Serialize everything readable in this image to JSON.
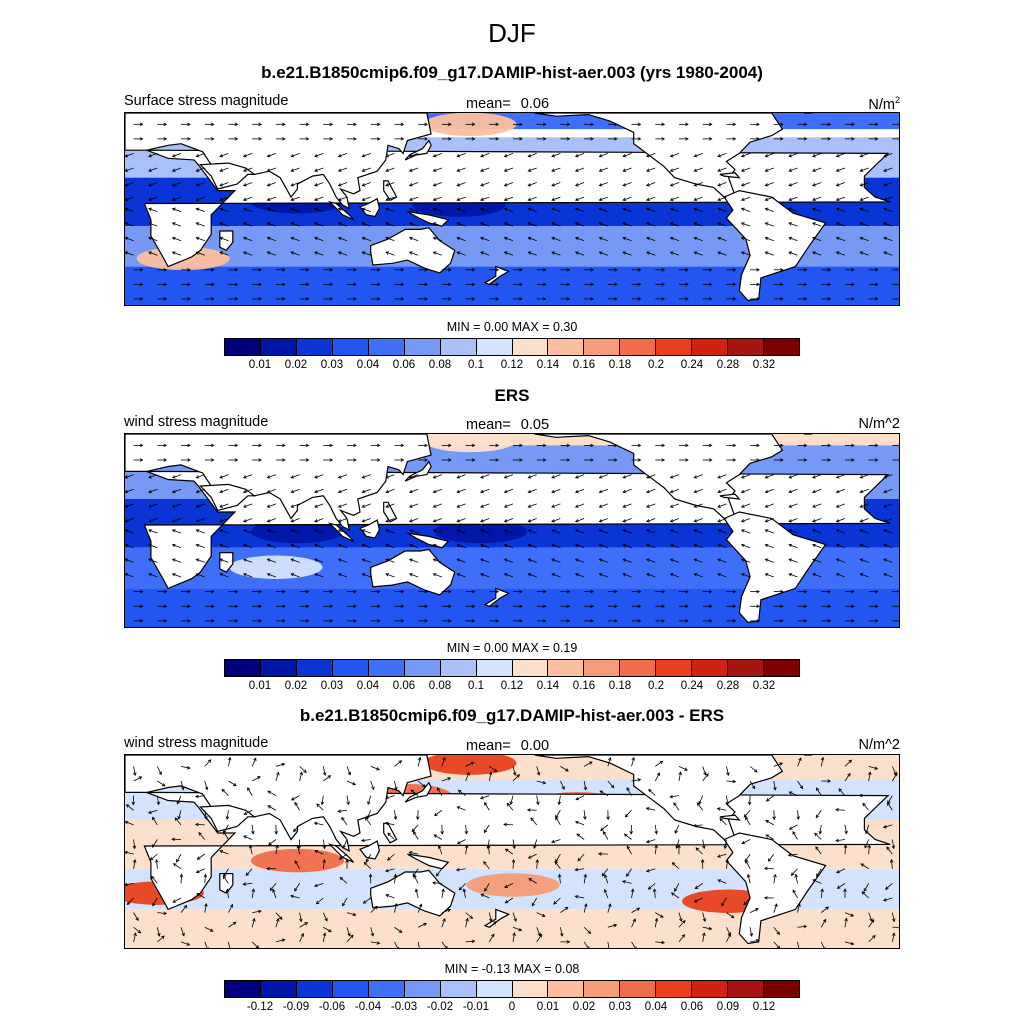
{
  "main_title": "DJF",
  "panels": [
    {
      "title": "b.e21.B1850cmip6.f09_g17.DAMIP-hist-aer.003 (yrs 1980-2004)",
      "left_label": "Surface stress magnitude",
      "mean_label": "mean=",
      "mean_value": "0.06",
      "units_base": "N/m",
      "units_sup": "2",
      "minmax": "MIN =   0.00 MAX =   0.30",
      "colorbar_ticks": [
        "0.01",
        "0.02",
        "0.03",
        "0.04",
        "0.06",
        "0.08",
        "0.1",
        "0.12",
        "0.14",
        "0.16",
        "0.18",
        "0.2",
        "0.24",
        "0.28",
        "0.32"
      ],
      "colors": [
        "#00007f",
        "#0016a8",
        "#0a35d6",
        "#2255f2",
        "#3f6ff8",
        "#7799f6",
        "#aac0fa",
        "#d4e3fd",
        "#fde0cc",
        "#fbbf9f",
        "#f69c78",
        "#ef6d4b",
        "#e8401e",
        "#cf2213",
        "#a81510",
        "#7c0000"
      ],
      "bands": [
        {
          "color_index": 4,
          "lat_min": 50,
          "lat_max": 60
        },
        {
          "color_index": 6,
          "lat_min": 20,
          "lat_max": 45
        },
        {
          "color_index": 2,
          "lat_min": -10,
          "lat_max": 20
        },
        {
          "color_index": 5,
          "lat_min": -35,
          "lat_max": -10
        },
        {
          "color_index": 3,
          "lat_min": -60,
          "lat_max": -35
        }
      ],
      "blobs": [
        {
          "color_index": 9,
          "lon": 160,
          "lat": 53
        },
        {
          "color_index": 8,
          "lon": 140,
          "lat": 20
        },
        {
          "color_index": 9,
          "lon": 27,
          "lat": -30
        },
        {
          "color_index": 1,
          "lon": 80,
          "lat": 5
        },
        {
          "color_index": 1,
          "lon": 155,
          "lat": 3
        }
      ]
    },
    {
      "title": "ERS",
      "left_label": "wind stress magnitude",
      "mean_label": "mean=",
      "mean_value": "0.05",
      "units_base": "N/m^2",
      "units_sup": "",
      "minmax": "MIN =   0.00 MAX =   0.19",
      "colorbar_ticks": [
        "0.01",
        "0.02",
        "0.03",
        "0.04",
        "0.06",
        "0.08",
        "0.1",
        "0.12",
        "0.14",
        "0.16",
        "0.18",
        "0.2",
        "0.24",
        "0.28",
        "0.32"
      ],
      "colors": [
        "#00007f",
        "#0016a8",
        "#0a35d6",
        "#2255f2",
        "#3f6ff8",
        "#7799f6",
        "#aac0fa",
        "#d4e3fd",
        "#fde0cc",
        "#fbbf9f",
        "#f69c78",
        "#ef6d4b",
        "#e8401e",
        "#cf2213",
        "#a81510",
        "#7c0000"
      ],
      "bands": [
        {
          "color_index": 8,
          "lat_min": 53,
          "lat_max": 60
        },
        {
          "color_index": 5,
          "lat_min": 20,
          "lat_max": 53
        },
        {
          "color_index": 2,
          "lat_min": -10,
          "lat_max": 20
        },
        {
          "color_index": 4,
          "lat_min": -35,
          "lat_max": -10
        },
        {
          "color_index": 3,
          "lat_min": -60,
          "lat_max": -35
        }
      ],
      "blobs": [
        {
          "color_index": 8,
          "lon": 160,
          "lat": 56
        },
        {
          "color_index": 1,
          "lon": 80,
          "lat": 0
        },
        {
          "color_index": 1,
          "lon": 165,
          "lat": 0
        },
        {
          "color_index": 7,
          "lon": 70,
          "lat": -22
        }
      ]
    },
    {
      "title": "b.e21.B1850cmip6.f09_g17.DAMIP-hist-aer.003 - ERS",
      "left_label": "wind stress magnitude",
      "mean_label": "mean=",
      "mean_value": "0.00",
      "units_base": "N/m^2",
      "units_sup": "",
      "minmax": "MIN =  -0.13 MAX =   0.08",
      "colorbar_ticks": [
        "-0.12",
        "-0.09",
        "-0.06",
        "-0.04",
        "-0.03",
        "-0.02",
        "-0.01",
        "0",
        "0.01",
        "0.02",
        "0.03",
        "0.04",
        "0.06",
        "0.09",
        "0.12"
      ],
      "colors": [
        "#00007f",
        "#0016a8",
        "#0a35d6",
        "#2255f2",
        "#3f6ff8",
        "#7799f6",
        "#aac0fa",
        "#d4e3fd",
        "#fde0cc",
        "#fbbf9f",
        "#f69c78",
        "#ef6d4b",
        "#e8401e",
        "#cf2213",
        "#a81510",
        "#7c0000"
      ],
      "bands": [
        {
          "color_index": 8,
          "lat_min": 45,
          "lat_max": 60
        },
        {
          "color_index": 7,
          "lat_min": 20,
          "lat_max": 45
        },
        {
          "color_index": 8,
          "lat_min": -10,
          "lat_max": 20
        },
        {
          "color_index": 7,
          "lat_min": -35,
          "lat_max": -10
        },
        {
          "color_index": 8,
          "lat_min": -60,
          "lat_max": -35
        }
      ],
      "blobs": [
        {
          "color_index": 12,
          "lon": 160,
          "lat": 55
        },
        {
          "color_index": 11,
          "lon": 130,
          "lat": 35
        },
        {
          "color_index": 11,
          "lon": 210,
          "lat": 30
        },
        {
          "color_index": 11,
          "lon": 80,
          "lat": -5
        },
        {
          "color_index": 12,
          "lon": 15,
          "lat": -25
        },
        {
          "color_index": 10,
          "lon": 180,
          "lat": -20
        },
        {
          "color_index": 12,
          "lon": 280,
          "lat": -30
        }
      ]
    }
  ]
}
